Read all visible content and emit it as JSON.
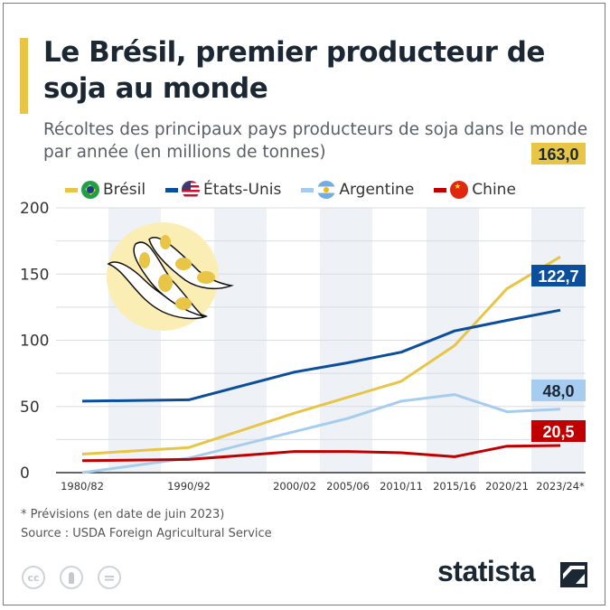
{
  "title": "Le Brésil, premier producteur de soja au monde",
  "subtitle": "Récoltes des principaux pays producteurs de soja dans le monde par année (en millions de tonnes)",
  "footnote": "* Prévisions (en date de juin 2023)",
  "source": "Source : USDA Foreign Agricultural Service",
  "brand": "statista",
  "license_icons": [
    "cc-icon",
    "attribution-icon",
    "no-derivatives-icon"
  ],
  "license_labels": {
    "cc": "cc",
    "eq": "="
  },
  "chart_data": {
    "type": "line",
    "title": "Le Brésil, premier producteur de soja au monde",
    "ylabel": "millions de tonnes",
    "ylim": [
      0,
      200
    ],
    "yticks": [
      "0",
      "50",
      "100",
      "150",
      "200"
    ],
    "grid": true,
    "legend_position": "top",
    "categories": [
      "1980/82",
      "1990/92",
      "2000/02",
      "2005/06",
      "2010/11",
      "2015/16",
      "2020/21",
      "2023/24*"
    ],
    "series": [
      {
        "name": "Brésil",
        "color": "#e8c547",
        "values": [
          14,
          19,
          45,
          57,
          69,
          96,
          139,
          163.0
        ],
        "end_label": "163,0",
        "label_text_color": "#1b2733"
      },
      {
        "name": "États-Unis",
        "color": "#0b4f9c",
        "values": [
          54,
          55,
          76,
          83,
          91,
          107,
          115,
          122.7
        ],
        "end_label": "122,7",
        "label_text_color": "#ffffff"
      },
      {
        "name": "Argentine",
        "color": "#a6cdef",
        "values": [
          0,
          11,
          31,
          41,
          54,
          59,
          46,
          48.0
        ],
        "end_label": "48,0",
        "label_text_color": "#1b2733"
      },
      {
        "name": "Chine",
        "color": "#c00000",
        "values": [
          9,
          10,
          16,
          16,
          15,
          12,
          20,
          20.5
        ],
        "end_label": "20,5",
        "label_text_color": "#ffffff"
      }
    ]
  }
}
